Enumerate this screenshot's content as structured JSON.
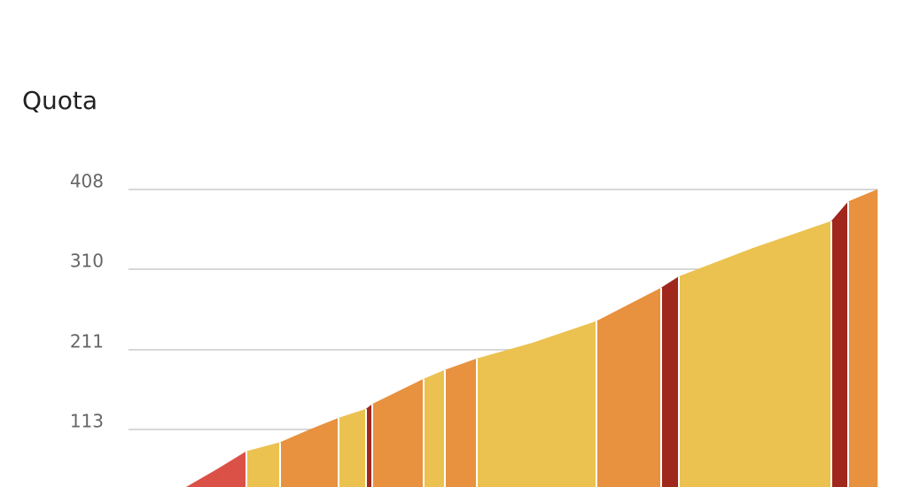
{
  "chart_data": {
    "type": "area",
    "title": "Quota",
    "x": [
      0.65,
      1.0,
      1.33,
      1.71,
      2.05,
      2.37,
      2.68,
      2.75,
      3.33,
      3.57,
      3.93,
      4.55,
      5.28,
      6.01,
      6.21,
      7.05,
      7.93,
      8.12,
      8.45
    ],
    "values": [
      42,
      64,
      86,
      97,
      113,
      127,
      138,
      144,
      175,
      186,
      200,
      219,
      246,
      287,
      301,
      336,
      369,
      393,
      408
    ],
    "interval_colors": [
      "#db5147",
      "#db5147",
      "#ebc24f",
      "#e8913f",
      "#e8913f",
      "#ebc24f",
      "#a0271c",
      "#e8913f",
      "#ebc24f",
      "#e8913f",
      "#ebc24f",
      "#ebc24f",
      "#e8913f",
      "#a0271c",
      "#ebc24f",
      "#ebc24f",
      "#a0271c",
      "#e8913f"
    ],
    "xlim": [
      0,
      8.45
    ],
    "ylim": [
      15,
      408
    ],
    "yticks": [
      113,
      211,
      310,
      408
    ],
    "grid": true
  }
}
